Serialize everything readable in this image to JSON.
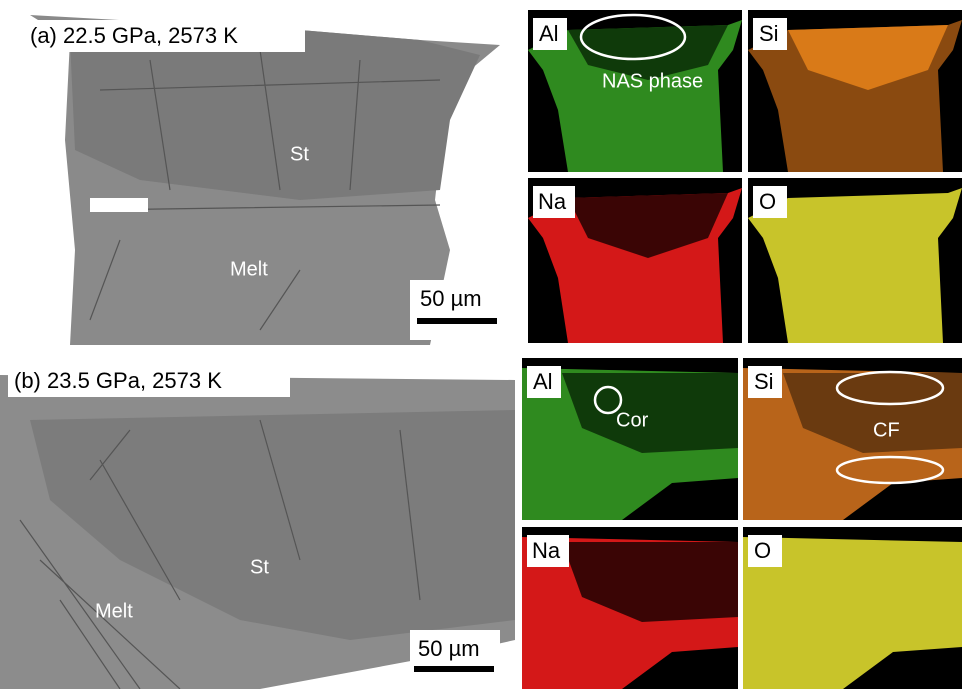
{
  "panels": [
    {
      "title": "(a) 22.5 GPa, 2573 K",
      "labels": [
        "St",
        "Melt"
      ],
      "scale_bar": "50 µm",
      "maps": [
        {
          "element": "Al",
          "annotation": "NAS phase"
        },
        {
          "element": "Si"
        },
        {
          "element": "Na"
        },
        {
          "element": "O"
        }
      ]
    },
    {
      "title": "(b) 23.5 GPa, 2573 K",
      "labels": [
        "St",
        "Melt"
      ],
      "scale_bar": "50 µm",
      "maps": [
        {
          "element": "Al",
          "annotation": "Cor"
        },
        {
          "element": "Si",
          "annotation": "CF"
        },
        {
          "element": "Na"
        },
        {
          "element": "O"
        }
      ]
    }
  ]
}
